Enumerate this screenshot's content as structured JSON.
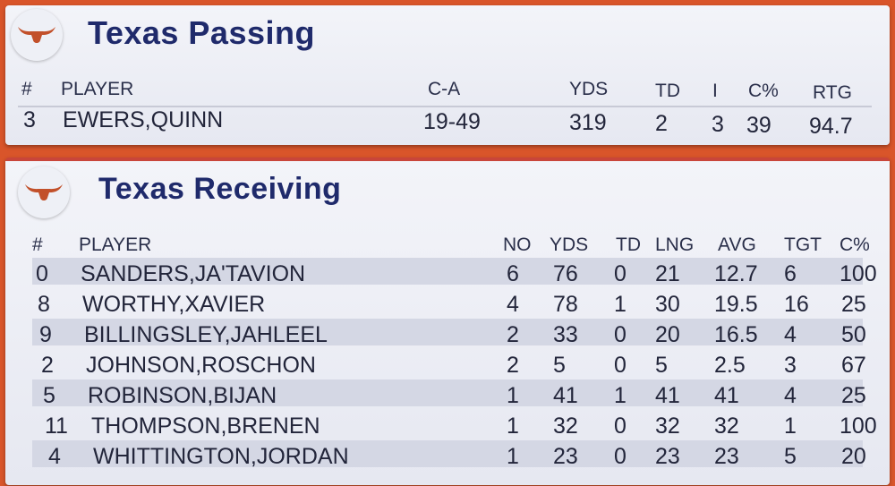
{
  "passing": {
    "title": "Texas Passing",
    "headers": {
      "num": "#",
      "player": "PLAYER",
      "ca": "C-A",
      "yds": "YDS",
      "td": "TD",
      "int": "I",
      "pct": "C%",
      "rtg": "RTG"
    },
    "rows": [
      {
        "num": "3",
        "player": "EWERS,QUINN",
        "ca": "19-49",
        "yds": "319",
        "td": "2",
        "int": "3",
        "pct": "39",
        "rtg": "94.7"
      }
    ]
  },
  "receiving": {
    "title": "Texas Receiving",
    "headers": {
      "num": "#",
      "player": "PLAYER",
      "no": "NO",
      "yds": "YDS",
      "td": "TD",
      "lng": "LNG",
      "avg": "AVG",
      "tgt": "TGT",
      "pct": "C%"
    },
    "rows": [
      {
        "num": "0",
        "player": "SANDERS,JA'TAVION",
        "no": "6",
        "yds": "76",
        "td": "0",
        "lng": "21",
        "avg": "12.7",
        "tgt": "6",
        "pct": "100"
      },
      {
        "num": "8",
        "player": "WORTHY,XAVIER",
        "no": "4",
        "yds": "78",
        "td": "1",
        "lng": "30",
        "avg": "19.5",
        "tgt": "16",
        "pct": "25"
      },
      {
        "num": "9",
        "player": "BILLINGSLEY,JAHLEEL",
        "no": "2",
        "yds": "33",
        "td": "0",
        "lng": "20",
        "avg": "16.5",
        "tgt": "4",
        "pct": "50"
      },
      {
        "num": "2",
        "player": "JOHNSON,ROSCHON",
        "no": "2",
        "yds": "5",
        "td": "0",
        "lng": "5",
        "avg": "2.5",
        "tgt": "3",
        "pct": "67"
      },
      {
        "num": "5",
        "player": "ROBINSON,BIJAN",
        "no": "1",
        "yds": "41",
        "td": "1",
        "lng": "41",
        "avg": "41",
        "tgt": "4",
        "pct": "25"
      },
      {
        "num": "11",
        "player": "THOMPSON,BRENEN",
        "no": "1",
        "yds": "32",
        "td": "0",
        "lng": "32",
        "avg": "32",
        "tgt": "1",
        "pct": "100"
      },
      {
        "num": "4",
        "player": "WHITTINGTON,JORDAN",
        "no": "1",
        "yds": "23",
        "td": "0",
        "lng": "23",
        "avg": "23",
        "tgt": "5",
        "pct": "20"
      }
    ]
  },
  "colors": {
    "brand_orange": "#d9552a",
    "title_navy": "#1f2a6b",
    "accent_red": "#c9453a"
  },
  "icons": {
    "logo": "longhorn-logo-icon"
  }
}
